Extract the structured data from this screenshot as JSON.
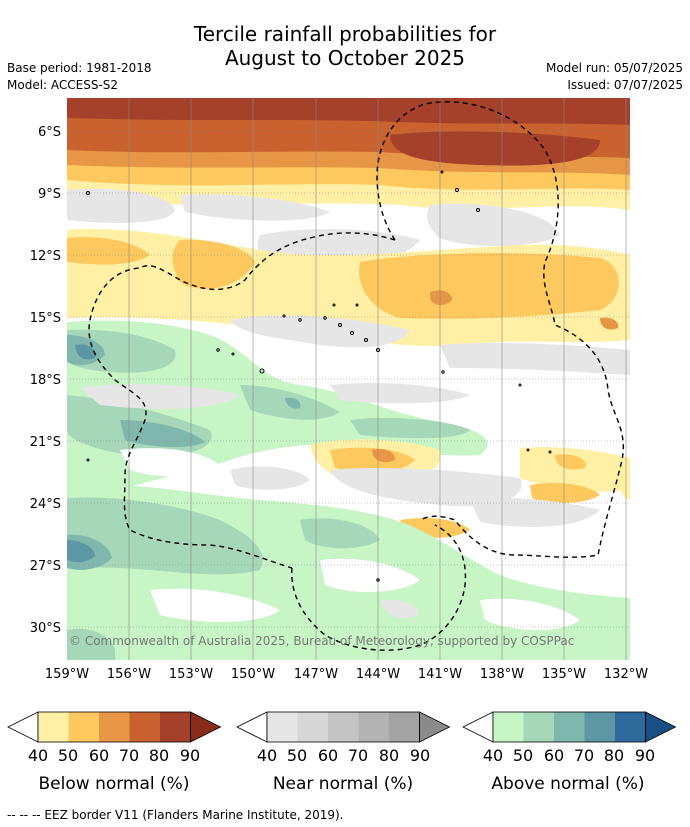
{
  "title_line1": "Tercile rainfall probabilities for",
  "title_line2": "August to October 2025",
  "meta": {
    "base_period": "Base period: 1981-2018",
    "model": "Model: ACCESS-S2",
    "model_run": "Model run: 05/07/2025",
    "issued": "Issued: 07/07/2025"
  },
  "copyright": "© Commonwealth of Australia 2025, Bureau of Meteorology, supported by COSPPac",
  "lat_labels": [
    "6°S",
    "9°S",
    "12°S",
    "15°S",
    "18°S",
    "21°S",
    "24°S",
    "27°S",
    "30°S"
  ],
  "lon_labels": [
    "159°W",
    "156°W",
    "153°W",
    "150°W",
    "147°W",
    "144°W",
    "141°W",
    "138°W",
    "135°W",
    "132°W"
  ],
  "legend": {
    "below": {
      "label": "Below normal (%)",
      "colors": [
        "#fff0a6",
        "#fdc85e",
        "#e79645",
        "#c9622f",
        "#a5402a",
        "#8a2a18"
      ]
    },
    "near": {
      "label": "Near normal (%)",
      "colors": [
        "#e6e6e6",
        "#d7d7d7",
        "#c4c4c4",
        "#b3b3b3",
        "#a3a3a3",
        "#8a8a8a"
      ]
    },
    "above": {
      "label": "Above normal (%)",
      "colors": [
        "#c7f5c6",
        "#a6d7b8",
        "#7fb7ad",
        "#5d97a5",
        "#2f6a9c",
        "#1a4f86"
      ]
    },
    "ticks": [
      "40",
      "50",
      "60",
      "70",
      "80",
      "90"
    ]
  },
  "footer": "--  --  -- EEZ border V11 (Flanders Marine Institute, 2019)."
}
